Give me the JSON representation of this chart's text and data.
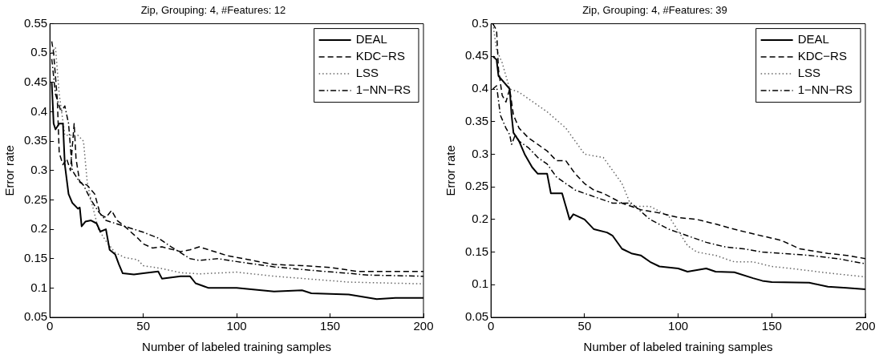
{
  "chart_data": [
    {
      "type": "line",
      "title": "Zip, Grouping: 4, #Features: 12",
      "xlabel": "Number of labeled training samples",
      "ylabel": "Error rate",
      "xlim": [
        0,
        200
      ],
      "xticks": [
        0,
        50,
        100,
        150,
        200
      ],
      "ylim": [
        0.05,
        0.55
      ],
      "yticks": [
        0.05,
        0.1,
        0.15,
        0.2,
        0.25,
        0.3,
        0.35,
        0.4,
        0.45,
        0.5,
        0.55
      ],
      "grid": false,
      "legend": "top right",
      "marker": "none",
      "series": [
        {
          "name": "DEAL",
          "color": "#000000",
          "line_style": "solid",
          "x": [
            1,
            2,
            3,
            5,
            7,
            8,
            10,
            12,
            15,
            16,
            17,
            19,
            22,
            25,
            27,
            30,
            32,
            35,
            37,
            39,
            45,
            50,
            58,
            60,
            70,
            75,
            78,
            85,
            100,
            120,
            135,
            140,
            160,
            175,
            185,
            200
          ],
          "values": [
            0.45,
            0.38,
            0.37,
            0.38,
            0.38,
            0.31,
            0.26,
            0.245,
            0.235,
            0.237,
            0.205,
            0.213,
            0.215,
            0.21,
            0.196,
            0.2,
            0.165,
            0.157,
            0.14,
            0.125,
            0.123,
            0.125,
            0.128,
            0.116,
            0.12,
            0.12,
            0.108,
            0.1,
            0.1,
            0.094,
            0.096,
            0.091,
            0.089,
            0.081,
            0.083,
            0.083
          ]
        },
        {
          "name": "KDC−RS",
          "color": "#000000",
          "line_style": "dashed",
          "x": [
            1,
            2,
            4,
            5,
            7,
            9,
            11,
            13,
            14,
            16,
            20,
            24,
            27,
            30,
            33,
            36,
            40,
            47,
            50,
            55,
            60,
            70,
            75,
            80,
            85,
            95,
            110,
            120,
            135,
            150,
            165,
            200
          ],
          "values": [
            0.52,
            0.5,
            0.42,
            0.33,
            0.31,
            0.32,
            0.3,
            0.38,
            0.32,
            0.28,
            0.275,
            0.26,
            0.225,
            0.22,
            0.232,
            0.215,
            0.205,
            0.185,
            0.175,
            0.168,
            0.17,
            0.162,
            0.165,
            0.17,
            0.165,
            0.155,
            0.146,
            0.14,
            0.138,
            0.135,
            0.128,
            0.128
          ]
        },
        {
          "name": "LSS",
          "color": "#666666",
          "line_style": "dotted",
          "x": [
            1,
            3,
            5,
            8,
            15,
            18,
            20,
            22,
            26,
            30,
            35,
            40,
            47,
            50,
            60,
            70,
            80,
            100,
            120,
            140,
            160,
            200
          ],
          "values": [
            0.5,
            0.51,
            0.43,
            0.36,
            0.36,
            0.35,
            0.28,
            0.25,
            0.2,
            0.18,
            0.16,
            0.152,
            0.148,
            0.138,
            0.133,
            0.126,
            0.124,
            0.127,
            0.12,
            0.115,
            0.11,
            0.107
          ]
        },
        {
          "name": "1−NN−RS",
          "color": "#000000",
          "line_style": "dashdot",
          "x": [
            1,
            3,
            6,
            8,
            10,
            12,
            15,
            18,
            22,
            26,
            30,
            40,
            50,
            58,
            65,
            70,
            75,
            80,
            90,
            100,
            120,
            140,
            160,
            170,
            200
          ],
          "values": [
            0.49,
            0.43,
            0.4,
            0.41,
            0.38,
            0.3,
            0.285,
            0.275,
            0.25,
            0.23,
            0.215,
            0.205,
            0.195,
            0.185,
            0.17,
            0.16,
            0.15,
            0.147,
            0.15,
            0.145,
            0.136,
            0.13,
            0.125,
            0.122,
            0.12
          ]
        }
      ]
    },
    {
      "type": "line",
      "title": "Zip, Grouping: 4, #Features: 39",
      "xlabel": "Number of labeled training samples",
      "ylabel": "Error rate",
      "xlim": [
        0,
        200
      ],
      "xticks": [
        0,
        50,
        100,
        150,
        200
      ],
      "ylim": [
        0.05,
        0.5
      ],
      "yticks": [
        0.05,
        0.1,
        0.15,
        0.2,
        0.25,
        0.3,
        0.35,
        0.4,
        0.45,
        0.5
      ],
      "grid": false,
      "legend": "top right",
      "marker": "none",
      "series": [
        {
          "name": "DEAL",
          "color": "#000000",
          "line_style": "solid",
          "x": [
            1,
            3,
            4,
            7,
            10,
            11,
            12,
            15,
            18,
            22,
            25,
            30,
            32,
            38,
            40,
            42,
            44,
            50,
            55,
            62,
            65,
            70,
            75,
            80,
            85,
            90,
            100,
            105,
            115,
            120,
            130,
            140,
            145,
            150,
            170,
            180,
            190,
            200
          ],
          "values": [
            0.45,
            0.445,
            0.42,
            0.41,
            0.4,
            0.36,
            0.333,
            0.32,
            0.3,
            0.28,
            0.27,
            0.27,
            0.24,
            0.24,
            0.22,
            0.2,
            0.208,
            0.2,
            0.185,
            0.18,
            0.175,
            0.155,
            0.148,
            0.145,
            0.135,
            0.128,
            0.125,
            0.12,
            0.125,
            0.12,
            0.119,
            0.11,
            0.106,
            0.104,
            0.103,
            0.097,
            0.095,
            0.093
          ]
        },
        {
          "name": "KDC−RS",
          "color": "#000000",
          "line_style": "dashed",
          "x": [
            1,
            3,
            4,
            6,
            8,
            10,
            12,
            15,
            20,
            25,
            30,
            35,
            40,
            45,
            50,
            55,
            60,
            70,
            80,
            90,
            100,
            110,
            120,
            130,
            140,
            155,
            165,
            180,
            190,
            200
          ],
          "values": [
            0.5,
            0.49,
            0.43,
            0.39,
            0.38,
            0.4,
            0.36,
            0.34,
            0.325,
            0.315,
            0.305,
            0.29,
            0.29,
            0.27,
            0.255,
            0.245,
            0.24,
            0.225,
            0.215,
            0.21,
            0.203,
            0.2,
            0.193,
            0.185,
            0.178,
            0.168,
            0.155,
            0.148,
            0.145,
            0.14
          ]
        },
        {
          "name": "LSS",
          "color": "#666666",
          "line_style": "dotted",
          "x": [
            1,
            3,
            6,
            10,
            15,
            20,
            30,
            40,
            50,
            60,
            70,
            75,
            85,
            95,
            105,
            110,
            120,
            130,
            140,
            150,
            160,
            180,
            200
          ],
          "values": [
            0.5,
            0.46,
            0.44,
            0.4,
            0.395,
            0.385,
            0.365,
            0.34,
            0.3,
            0.295,
            0.255,
            0.22,
            0.22,
            0.205,
            0.16,
            0.15,
            0.145,
            0.135,
            0.135,
            0.128,
            0.125,
            0.118,
            0.112
          ]
        },
        {
          "name": "1−NN−RS",
          "color": "#000000",
          "line_style": "dashdot",
          "x": [
            1,
            3,
            5,
            8,
            10,
            11,
            13,
            15,
            20,
            25,
            30,
            35,
            40,
            45,
            55,
            65,
            75,
            85,
            95,
            105,
            115,
            125,
            135,
            145,
            155,
            170,
            185,
            200
          ],
          "values": [
            0.4,
            0.405,
            0.36,
            0.34,
            0.33,
            0.315,
            0.33,
            0.32,
            0.31,
            0.295,
            0.285,
            0.265,
            0.255,
            0.245,
            0.235,
            0.225,
            0.225,
            0.2,
            0.185,
            0.175,
            0.165,
            0.158,
            0.155,
            0.15,
            0.148,
            0.145,
            0.14,
            0.132
          ]
        }
      ]
    }
  ]
}
